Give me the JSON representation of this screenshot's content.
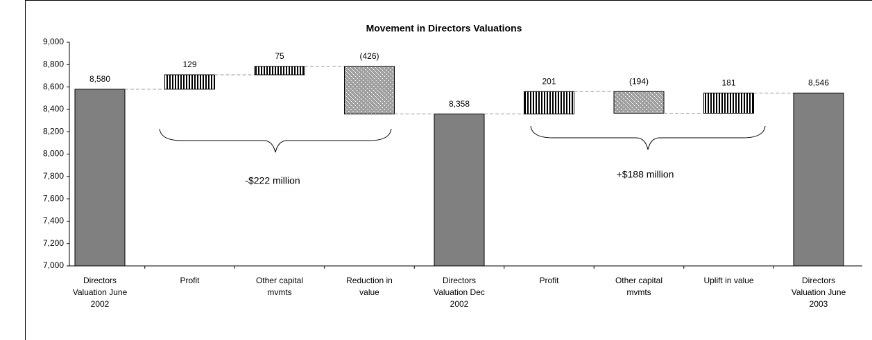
{
  "chart_data": {
    "type": "waterfall",
    "title": "Movement in Directors Valuations",
    "categories": [
      "Directors Valuation June 2002",
      "Profit",
      "Other capital mvmts",
      "Reduction in value",
      "Directors Valuation Dec 2002",
      "Profit",
      "Other capital mvmts",
      "Uplift in value",
      "Directors Valuation June 2003"
    ],
    "values": [
      8580,
      129,
      75,
      -426,
      8358,
      201,
      -194,
      181,
      8546
    ],
    "value_labels": [
      "8,580",
      "129",
      "75",
      "(426)",
      "8,358",
      "201",
      "(194)",
      "181",
      "8,546"
    ],
    "total_indices": [
      0,
      4,
      8
    ],
    "total_color": "#808080",
    "ylim": [
      7000,
      9000
    ],
    "yticks": [
      {
        "value": 7000,
        "label": "7,000"
      },
      {
        "value": 7200,
        "label": "7,200"
      },
      {
        "value": 7400,
        "label": "7,400"
      },
      {
        "value": 7600,
        "label": "7,600"
      },
      {
        "value": 7800,
        "label": "7,800"
      },
      {
        "value": 8000,
        "label": "8,000"
      },
      {
        "value": 8200,
        "label": "8,200"
      },
      {
        "value": 8400,
        "label": "8,400"
      },
      {
        "value": 8600,
        "label": "8,600"
      },
      {
        "value": 8800,
        "label": "8,800"
      },
      {
        "value": 9000,
        "label": "9,000"
      }
    ],
    "annotations": [
      "-$222 million",
      "+$188 million"
    ]
  }
}
